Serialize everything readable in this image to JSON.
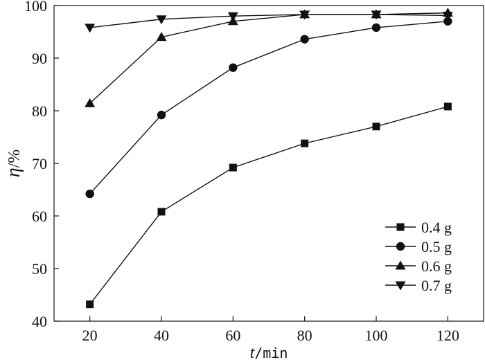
{
  "chart_data": {
    "type": "line",
    "xlabel_var": "t",
    "xlabel_unit": "/min",
    "ylabel_var": "η",
    "ylabel_unit": "/%",
    "xlim": [
      10,
      130
    ],
    "ylim": [
      40,
      100
    ],
    "xticks": [
      20,
      40,
      60,
      80,
      100,
      120
    ],
    "yticks": [
      40,
      50,
      60,
      70,
      80,
      90,
      100
    ],
    "x": [
      20,
      40,
      60,
      80,
      100,
      120
    ],
    "grid": false,
    "legend_position": "lower-right",
    "series": [
      {
        "name": "0.4 g",
        "marker": "square",
        "values": [
          43.2,
          60.8,
          69.2,
          73.8,
          77.0,
          80.8
        ]
      },
      {
        "name": "0.5 g",
        "marker": "circle",
        "values": [
          64.2,
          79.2,
          88.2,
          93.6,
          95.8,
          97.0
        ]
      },
      {
        "name": "0.6 g",
        "marker": "triangle-up",
        "values": [
          81.4,
          94.0,
          97.0,
          98.3,
          98.3,
          98.6
        ]
      },
      {
        "name": "0.7 g",
        "marker": "triangle-down",
        "values": [
          95.8,
          97.4,
          98.0,
          98.3,
          98.3,
          98.1
        ]
      }
    ],
    "colors": {
      "line": "#111111",
      "marker": "#111111"
    }
  }
}
